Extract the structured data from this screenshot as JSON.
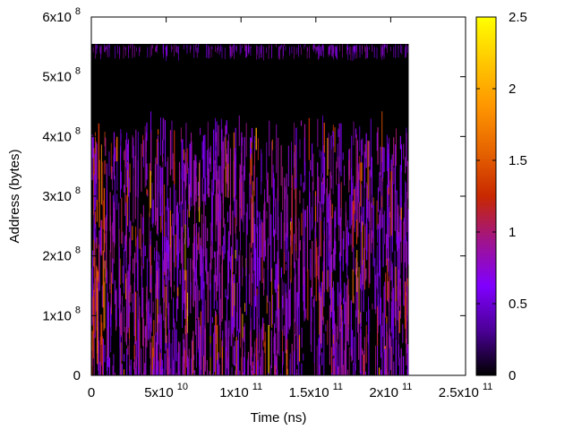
{
  "chart_data": {
    "type": "heatmap",
    "title": "",
    "xlabel": "Time (ns)",
    "ylabel": "Address (bytes)",
    "xlim": [
      0,
      250000000000
    ],
    "ylim": [
      0,
      600000000
    ],
    "x_ticks": [
      {
        "value": 0,
        "mantissa": "0",
        "exp": ""
      },
      {
        "value": 50000000000,
        "mantissa": "5x10",
        "exp": "10"
      },
      {
        "value": 100000000000,
        "mantissa": "1x10",
        "exp": "11"
      },
      {
        "value": 150000000000,
        "mantissa": "1.5x10",
        "exp": "11"
      },
      {
        "value": 200000000000,
        "mantissa": "2x10",
        "exp": "11"
      },
      {
        "value": 250000000000,
        "mantissa": "2.5x10",
        "exp": "11"
      }
    ],
    "y_ticks": [
      {
        "value": 0,
        "mantissa": "0",
        "exp": ""
      },
      {
        "value": 100000000,
        "mantissa": "1x10",
        "exp": "8"
      },
      {
        "value": 200000000,
        "mantissa": "2x10",
        "exp": "8"
      },
      {
        "value": 300000000,
        "mantissa": "3x10",
        "exp": "8"
      },
      {
        "value": 400000000,
        "mantissa": "4x10",
        "exp": "8"
      },
      {
        "value": 500000000,
        "mantissa": "5x10",
        "exp": "8"
      },
      {
        "value": 600000000,
        "mantissa": "6x10",
        "exp": "8"
      }
    ],
    "data_extent": {
      "x": [
        0,
        212000000000
      ],
      "y": [
        0,
        555000000
      ],
      "dense_region_top": 430000000
    },
    "colorbar": {
      "min": 0,
      "max": 2.5,
      "ticks": [
        {
          "value": 0,
          "label": "0"
        },
        {
          "value": 0.5,
          "label": "0.5"
        },
        {
          "value": 1,
          "label": "1"
        },
        {
          "value": 1.5,
          "label": "1.5"
        },
        {
          "value": 2,
          "label": "2"
        },
        {
          "value": 2.5,
          "label": "2.5"
        }
      ],
      "colormap": [
        "#000000",
        "#4b0096",
        "#8000ff",
        "#a0148c",
        "#c82800",
        "#e66400",
        "#ff9600",
        "#ffc800",
        "#ffff00"
      ]
    },
    "background_color": "#000000",
    "dominant_value": 0.75,
    "grid": false
  }
}
